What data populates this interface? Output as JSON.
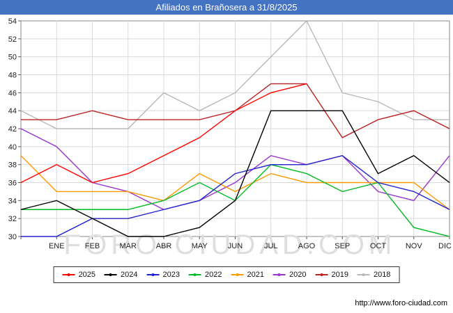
{
  "title": "Afiliados en Brañosera a 31/8/2025",
  "watermark": "FORO-CIUDAD.COM",
  "footer_url": "http://www.foro-ciudad.com",
  "colors": {
    "titlebar": "#4473c4",
    "grid": "#d9d9d9",
    "axis": "#888888",
    "tick_text": "#222222",
    "watermark": "#dedede"
  },
  "chart_data": {
    "type": "line",
    "title": "Afiliados en Brañosera a 31/8/2025",
    "x_labels": [
      "ENE",
      "FEB",
      "MAR",
      "ABR",
      "MAY",
      "JUN",
      "JUL",
      "AGO",
      "SEP",
      "OCT",
      "NOV",
      "DIC"
    ],
    "ylim": [
      30,
      54
    ],
    "ytick_step": 2,
    "grid": true,
    "legend_position": "bottom",
    "note_first_point": "each series has a lead-in value at the left axis before ENE",
    "series": [
      {
        "name": "2025",
        "color": "#ff0000",
        "values": [
          36,
          38,
          36,
          37,
          39,
          41,
          44,
          46,
          47
        ]
      },
      {
        "name": "2024",
        "color": "#000000",
        "values": [
          33,
          34,
          32,
          30,
          30,
          31,
          34,
          44,
          44,
          44,
          37,
          39,
          36
        ]
      },
      {
        "name": "2023",
        "color": "#2222cc",
        "values": [
          30,
          30,
          32,
          32,
          33,
          34,
          37,
          38,
          38,
          39,
          36,
          35,
          33
        ]
      },
      {
        "name": "2022",
        "color": "#00bb22",
        "values": [
          33,
          33,
          33,
          33,
          34,
          36,
          34,
          38,
          37,
          35,
          36,
          31,
          30
        ]
      },
      {
        "name": "2021",
        "color": "#ff9900",
        "values": [
          39,
          35,
          35,
          35,
          34,
          37,
          35,
          37,
          36,
          36,
          36,
          36,
          33
        ]
      },
      {
        "name": "2020",
        "color": "#9933cc",
        "values": [
          42,
          40,
          36,
          35,
          33,
          34,
          36,
          39,
          38,
          39,
          35,
          34,
          39
        ]
      },
      {
        "name": "2019",
        "color": "#bb2222",
        "values": [
          43,
          43,
          44,
          43,
          43,
          43,
          44,
          47,
          47,
          41,
          43,
          44,
          42
        ]
      },
      {
        "name": "2018",
        "color": "#b8b8b8",
        "values": [
          44,
          42,
          42,
          42,
          46,
          44,
          46,
          50,
          54,
          46,
          45,
          43,
          43
        ]
      }
    ]
  }
}
